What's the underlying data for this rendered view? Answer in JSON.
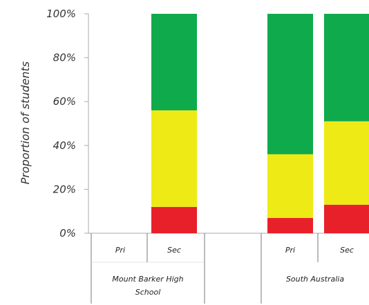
{
  "chart_data": {
    "type": "bar",
    "stacked": true,
    "percent": true,
    "ylabel": "Proportion of students",
    "ylim": [
      0,
      100
    ],
    "yticks": [
      {
        "value": 0,
        "label": "0%"
      },
      {
        "value": 20,
        "label": "20%"
      },
      {
        "value": 40,
        "label": "40%"
      },
      {
        "value": 60,
        "label": "60%"
      },
      {
        "value": 80,
        "label": "80%"
      },
      {
        "value": 100,
        "label": "100%"
      }
    ],
    "groups": [
      {
        "label_lines": [
          "Mount Barker High",
          "School"
        ],
        "categories": [
          "Pri",
          "Sec"
        ]
      },
      {
        "label_lines": [
          "South Australia"
        ],
        "categories": [
          "Pri",
          "Sec"
        ]
      }
    ],
    "series_colors": {
      "red": "#e8202a",
      "yellow": "#eeea16",
      "green": "#0faa4b"
    },
    "bars": [
      {
        "group": 0,
        "category": "Pri",
        "red": 0,
        "yellow": 0,
        "green": 0
      },
      {
        "group": 0,
        "category": "Sec",
        "red": 12,
        "yellow": 44,
        "green": 44
      },
      {
        "group": 1,
        "category": "Pri",
        "red": 7,
        "yellow": 29,
        "green": 64
      },
      {
        "group": 1,
        "category": "Sec",
        "red": 13,
        "yellow": 38,
        "green": 49
      }
    ],
    "grid": false,
    "legend": "none"
  }
}
